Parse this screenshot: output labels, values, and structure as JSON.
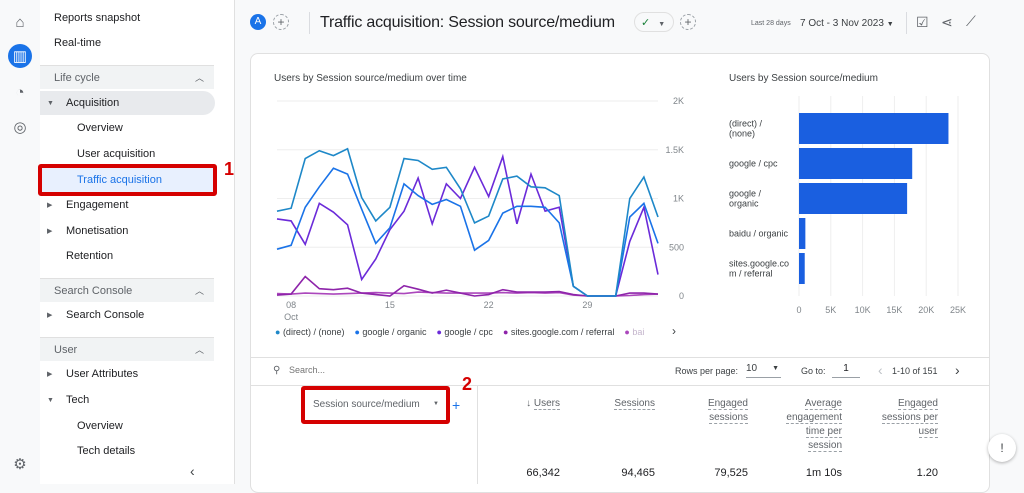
{
  "rail": {
    "icons": [
      "home-icon",
      "reports-icon",
      "explore-icon",
      "advertising-icon",
      "settings-icon"
    ]
  },
  "sidebar": {
    "reports_snapshot": "Reports snapshot",
    "realtime": "Real-time",
    "lifecycle": "Life cycle",
    "acquisition": "Acquisition",
    "overview": "Overview",
    "user_acquisition": "User acquisition",
    "traffic_acquisition": "Traffic acquisition",
    "engagement": "Engagement",
    "monetisation": "Monetisation",
    "retention": "Retention",
    "search_console_section": "Search Console",
    "search_console": "Search Console",
    "user_section": "User",
    "user_attributes": "User Attributes",
    "tech": "Tech",
    "tech_overview": "Overview",
    "tech_details": "Tech details"
  },
  "annotations": {
    "one": "1",
    "two": "2"
  },
  "header": {
    "avatar": "A",
    "title": "Traffic acquisition: Session source/medium",
    "date_label": "Last 28 days",
    "date_range": "7 Oct - 3 Nov 2023"
  },
  "accent": "#1a73e8",
  "chart_data": [
    {
      "type": "line",
      "title": "Users by Session source/medium over time",
      "ylim": [
        0,
        2000
      ],
      "y_ticks": [
        "2K",
        "1.5K",
        "1K",
        "500",
        "0"
      ],
      "x_ticks": [
        "08",
        "15",
        "22",
        "29"
      ],
      "x_sub": "Oct",
      "x": [
        "Oct 7",
        "Oct 8",
        "Oct 9",
        "Oct 10",
        "Oct 11",
        "Oct 12",
        "Oct 13",
        "Oct 14",
        "Oct 15",
        "Oct 16",
        "Oct 17",
        "Oct 18",
        "Oct 19",
        "Oct 20",
        "Oct 21",
        "Oct 22",
        "Oct 23",
        "Oct 24",
        "Oct 25",
        "Oct 26",
        "Oct 27",
        "Oct 28",
        "Oct 29",
        "Oct 30",
        "Oct 31",
        "Nov 1",
        "Nov 2",
        "Nov 3"
      ],
      "series": [
        {
          "name": "(direct) / (none)",
          "color": "#1e88c8",
          "values": [
            870,
            900,
            1410,
            1490,
            1440,
            1510,
            1010,
            770,
            910,
            1410,
            1390,
            1300,
            1320,
            1100,
            750,
            820,
            1200,
            1230,
            1120,
            1110,
            1030,
            100,
            0,
            0,
            0,
            1000,
            1220,
            810
          ]
        },
        {
          "name": "google / organic",
          "color": "#1a73e8",
          "values": [
            480,
            520,
            910,
            1120,
            1310,
            1250,
            890,
            540,
            700,
            1150,
            1030,
            940,
            990,
            920,
            470,
            570,
            850,
            920,
            920,
            910,
            750,
            100,
            0,
            0,
            0,
            810,
            950,
            540
          ]
        },
        {
          "name": "google / cpc",
          "color": "#6b2bd9",
          "values": [
            790,
            770,
            530,
            950,
            860,
            730,
            170,
            380,
            680,
            870,
            1210,
            740,
            1150,
            1000,
            1320,
            1020,
            1430,
            740,
            1250,
            870,
            910,
            100,
            0,
            0,
            0,
            560,
            910,
            220
          ]
        },
        {
          "name": "sites.google.com / referral",
          "color": "#8e24aa",
          "values": [
            10,
            20,
            200,
            75,
            65,
            80,
            30,
            15,
            0,
            105,
            70,
            30,
            60,
            30,
            0,
            15,
            65,
            40,
            40,
            40,
            45,
            15,
            0,
            0,
            0,
            30,
            30,
            20
          ]
        },
        {
          "name": "bai",
          "color": "#ab47bc",
          "values": [
            25,
            20,
            30,
            25,
            20,
            25,
            30,
            35,
            30,
            25,
            40,
            35,
            30,
            30,
            30,
            30,
            35,
            30,
            35,
            30,
            35,
            10,
            0,
            0,
            0,
            5,
            15,
            20
          ]
        }
      ]
    },
    {
      "type": "bar",
      "title": "Users by Session source/medium",
      "xlim": [
        0,
        25000
      ],
      "x_ticks": [
        "0",
        "5K",
        "10K",
        "15K",
        "20K",
        "25K"
      ],
      "categories": [
        "(direct) / (none)",
        "google / cpc",
        "google / organic",
        "baidu / organic",
        "sites.google.com / referral"
      ],
      "values": [
        23500,
        17800,
        17000,
        1000,
        900
      ],
      "color": "#1a5fe0"
    }
  ],
  "table": {
    "search_placeholder": "Search...",
    "rows_per_page_label": "Rows per page:",
    "rows_per_page": "10",
    "goto_label": "Go to:",
    "goto_value": "1",
    "range": "1-10 of 151",
    "dimension": "Session source/medium",
    "columns": [
      "Users",
      "Sessions",
      "Engaged sessions",
      "Average engagement time per session",
      "Engaged sessions per user"
    ],
    "totals": [
      "66,342",
      "94,465",
      "79,525",
      "1m 10s",
      "1.20"
    ]
  }
}
